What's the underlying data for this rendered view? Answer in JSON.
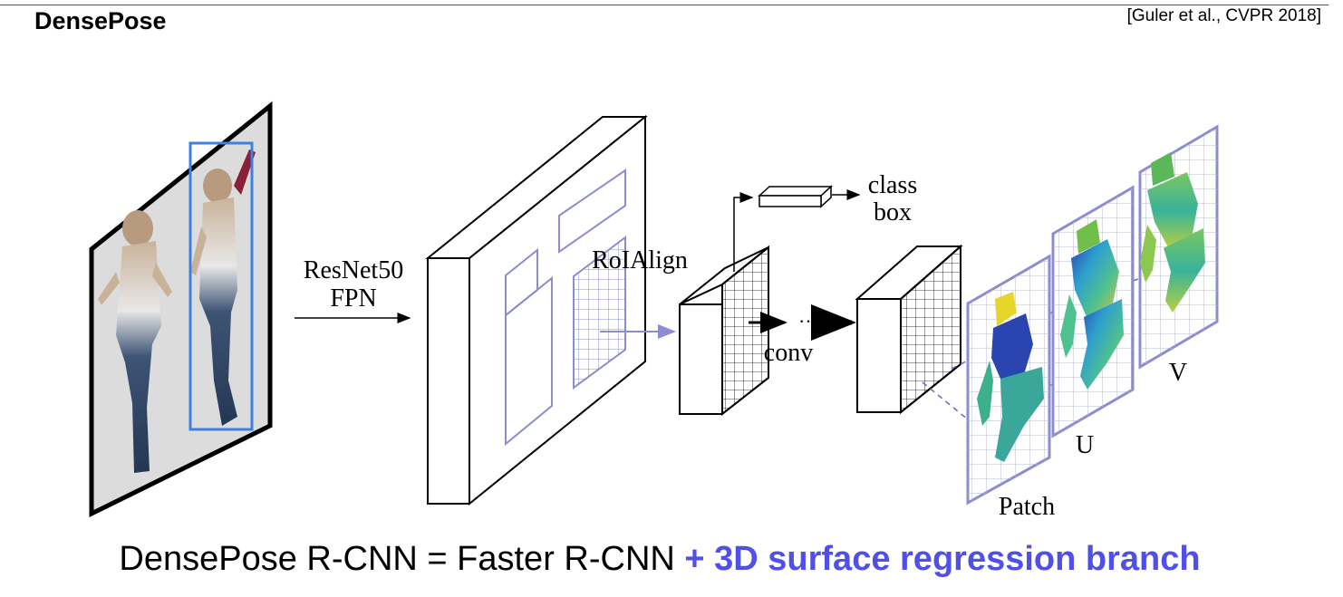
{
  "slide": {
    "title": "DensePose",
    "citation": "[Guler et al., CVPR 2018]"
  },
  "diagram": {
    "backbone_label_line1": "ResNet50",
    "backbone_label_line2": "FPN",
    "roi_label": "RoIAlign",
    "head_output_line1": "class",
    "head_output_line2": "box",
    "conv_label": "conv",
    "ellipsis": "···",
    "output_labels": [
      "Patch",
      "U",
      "V"
    ]
  },
  "caption": {
    "main": "DensePose R-CNN = Faster R-CNN ",
    "highlight": "+ 3D surface regression branch"
  },
  "colors": {
    "accent": "#5050e8",
    "frame_blue": "#8c8cd0",
    "detect_blue": "#3f7fe0",
    "line": "#000000"
  }
}
